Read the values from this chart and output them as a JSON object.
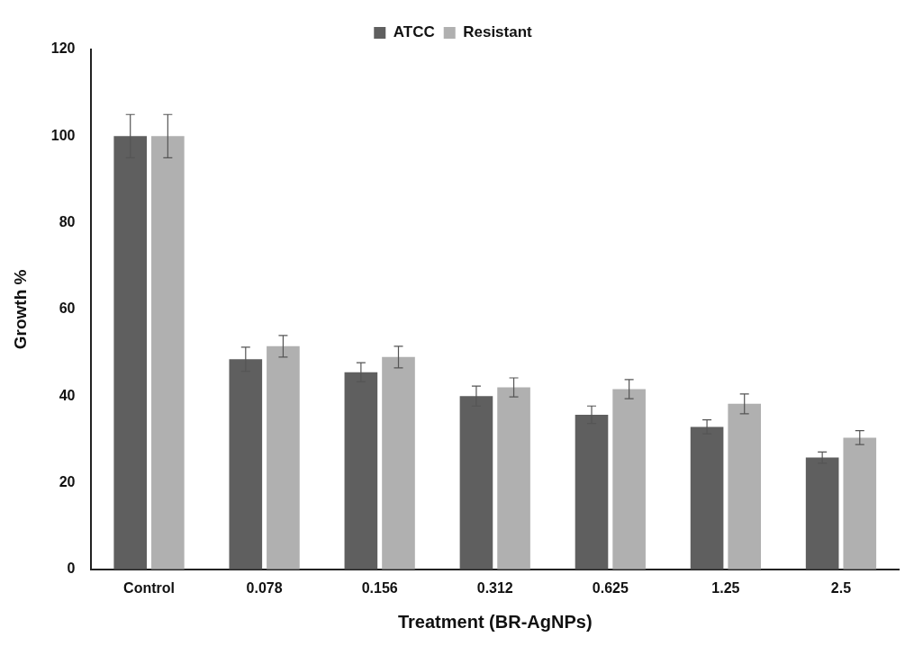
{
  "chart_data": {
    "type": "bar",
    "xlabel": "Treatment (BR-AgNPs)",
    "ylabel": "Growth %",
    "categories": [
      "Control",
      "0.078",
      "0.156",
      "0.312",
      "0.625",
      "1.25",
      "2.5"
    ],
    "series": [
      {
        "name": "ATCC",
        "color": "#5f5f5f",
        "values": [
          100,
          48.5,
          45.5,
          40,
          35.7,
          32.9,
          25.8
        ],
        "errors": [
          5,
          2.8,
          2.2,
          2.3,
          2,
          1.6,
          1.3
        ]
      },
      {
        "name": "Resistant",
        "color": "#b0b0b0",
        "values": [
          100,
          51.5,
          49,
          42,
          41.6,
          38.2,
          30.4
        ],
        "errors": [
          5,
          2.5,
          2.5,
          2.2,
          2.2,
          2.3,
          1.6
        ]
      }
    ],
    "ylim": [
      0,
      120
    ],
    "yticks": [
      0,
      20,
      40,
      60,
      80,
      100,
      120
    ],
    "grid": false,
    "legend": "top"
  }
}
